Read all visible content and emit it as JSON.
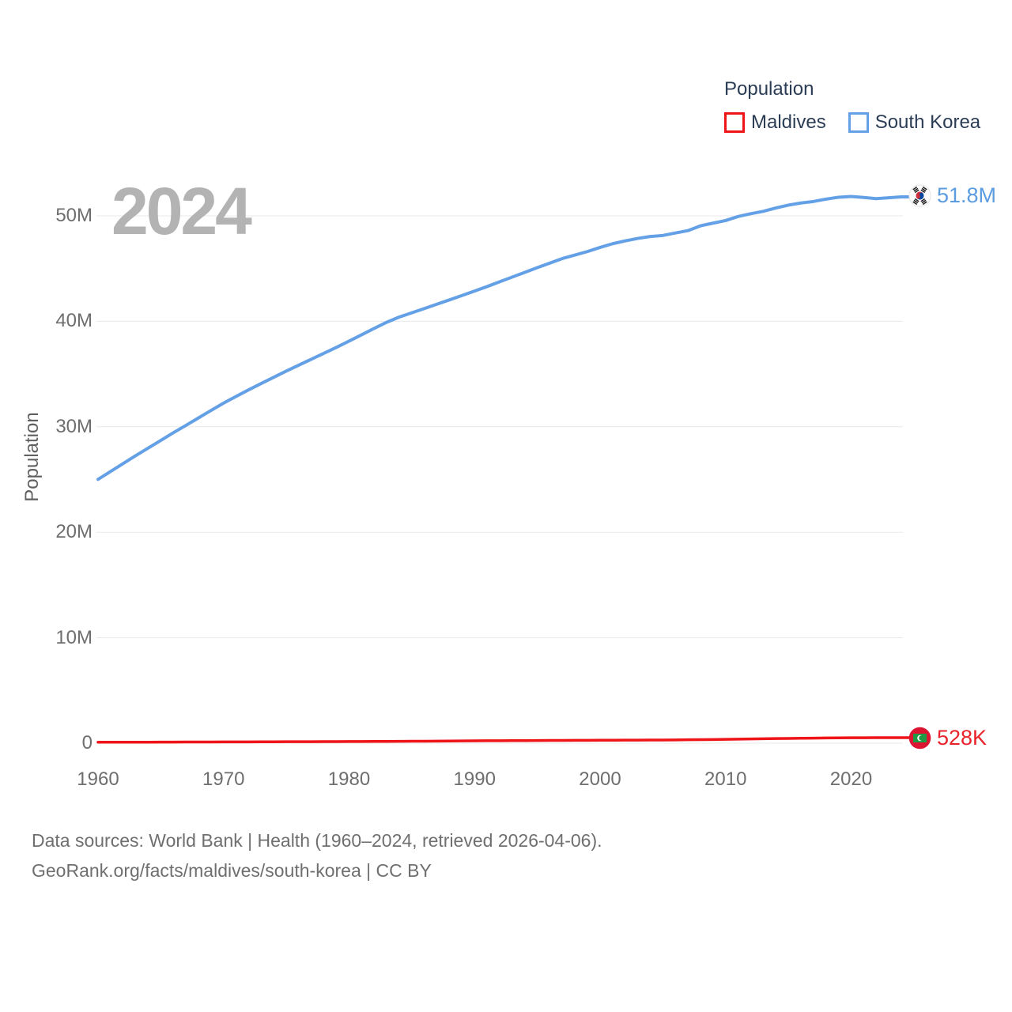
{
  "watermark": "2024",
  "legend": {
    "title": "Population",
    "items": [
      {
        "label": "Maldives",
        "color": "#ee1418"
      },
      {
        "label": "South Korea",
        "color": "#64a0e6"
      }
    ]
  },
  "y_axis": {
    "label": "Population"
  },
  "end_labels": [
    {
      "series": "South Korea",
      "value": "51.8M",
      "flag_icon": "south-korea-flag-icon",
      "text_color": "#5b9be0"
    },
    {
      "series": "Maldives",
      "value": "528K",
      "flag_icon": "maldives-flag-icon",
      "text_color": "#e8232b"
    }
  ],
  "footer": {
    "line1": "Data sources: World Bank | Health (1960–2024, retrieved 2026-04-06).",
    "line2": "GeoRank.org/facts/maldives/south-korea | CC BY"
  },
  "chart_data": {
    "type": "line",
    "title": "Population",
    "xlabel": "",
    "ylabel": "Population",
    "xlim": [
      1960,
      2024
    ],
    "ylim": [
      0,
      54000000
    ],
    "grid": "horizontal",
    "legend_position": "top-right",
    "x_ticks": [
      1960,
      1970,
      1980,
      1990,
      2000,
      2010,
      2020
    ],
    "y_ticks": [
      {
        "label": "0",
        "value": 0
      },
      {
        "label": "10M",
        "value": 10
      },
      {
        "label": "20M",
        "value": 20
      },
      {
        "label": "30M",
        "value": 30
      },
      {
        "label": "40M",
        "value": 40
      },
      {
        "label": "50M",
        "value": 50
      }
    ],
    "x": [
      1960,
      1961,
      1962,
      1963,
      1964,
      1965,
      1966,
      1967,
      1968,
      1969,
      1970,
      1971,
      1972,
      1973,
      1974,
      1975,
      1976,
      1977,
      1978,
      1979,
      1980,
      1981,
      1982,
      1983,
      1984,
      1985,
      1986,
      1987,
      1988,
      1989,
      1990,
      1991,
      1992,
      1993,
      1994,
      1995,
      1996,
      1997,
      1998,
      1999,
      2000,
      2001,
      2002,
      2003,
      2004,
      2005,
      2006,
      2007,
      2008,
      2009,
      2010,
      2011,
      2012,
      2013,
      2014,
      2015,
      2016,
      2017,
      2018,
      2019,
      2020,
      2021,
      2022,
      2023,
      2024
    ],
    "series": [
      {
        "name": "South Korea",
        "color": "#64a0e6",
        "stroke_width": 4,
        "unit": "millions",
        "end_value_label": "51.8M",
        "values": [
          25.012,
          25.766,
          26.513,
          27.262,
          27.984,
          28.705,
          29.436,
          30.131,
          30.838,
          31.544,
          32.241,
          32.883,
          33.505,
          34.103,
          34.692,
          35.281,
          35.849,
          36.412,
          36.969,
          37.534,
          38.124,
          38.723,
          39.326,
          39.91,
          40.406,
          40.806,
          41.214,
          41.622,
          42.031,
          42.449,
          42.869,
          43.296,
          43.748,
          44.195,
          44.642,
          45.093,
          45.525,
          45.954,
          46.287,
          46.617,
          47.008,
          47.357,
          47.622,
          47.859,
          48.039,
          48.138,
          48.372,
          48.598,
          49.055,
          49.308,
          49.554,
          49.937,
          50.2,
          50.429,
          50.747,
          51.015,
          51.218,
          51.362,
          51.585,
          51.765,
          51.836,
          51.745,
          51.628,
          51.713,
          51.8
        ]
      },
      {
        "name": "Maldives",
        "color": "#ee1418",
        "stroke_width": 3.5,
        "unit": "millions",
        "end_value_label": "528K",
        "values": [
          0.09,
          0.092,
          0.094,
          0.096,
          0.098,
          0.1,
          0.104,
          0.108,
          0.112,
          0.116,
          0.12,
          0.123,
          0.126,
          0.13,
          0.133,
          0.136,
          0.14,
          0.144,
          0.147,
          0.151,
          0.155,
          0.16,
          0.166,
          0.172,
          0.178,
          0.184,
          0.191,
          0.199,
          0.207,
          0.215,
          0.224,
          0.23,
          0.236,
          0.242,
          0.248,
          0.254,
          0.259,
          0.264,
          0.269,
          0.274,
          0.279,
          0.283,
          0.287,
          0.292,
          0.296,
          0.301,
          0.312,
          0.324,
          0.336,
          0.348,
          0.361,
          0.38,
          0.399,
          0.418,
          0.436,
          0.454,
          0.468,
          0.482,
          0.493,
          0.504,
          0.514,
          0.519,
          0.523,
          0.526,
          0.528
        ]
      }
    ]
  }
}
